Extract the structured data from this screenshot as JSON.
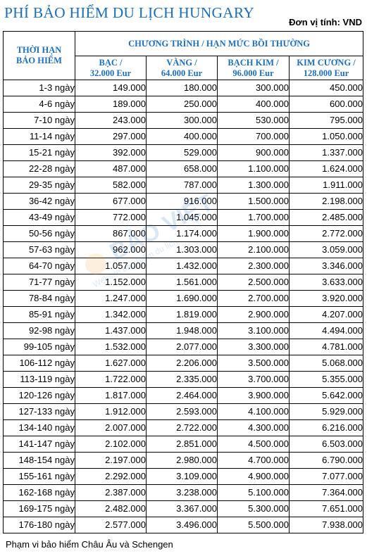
{
  "title": "PHÍ BẢO HIỂM DU LỊCH HUNGARY",
  "unit_label": "Đơn vị tính: VND",
  "table": {
    "term_header": [
      "THỜI HẠN",
      "BẢO HIỂM"
    ],
    "group_header": "CHƯƠNG TRÌNH / HẠN MỨC BỒI THƯỜNG",
    "tiers": [
      {
        "name": "BẠC /",
        "limit": "32.000 Eur"
      },
      {
        "name": "VÀNG /",
        "limit": "64.000 Eur"
      },
      {
        "name": "BẠCH KIM /",
        "limit": "96.000 Eur"
      },
      {
        "name": "KIM CƯƠNG /",
        "limit": "128.000 Eur"
      }
    ],
    "rows": [
      {
        "term": "1-3 ngày",
        "values": [
          "149.000",
          "180.000",
          "300.000",
          "450.000"
        ]
      },
      {
        "term": "4-6 ngày",
        "values": [
          "189.000",
          "250.000",
          "400.000",
          "600.000"
        ]
      },
      {
        "term": "7-10 ngày",
        "values": [
          "243.000",
          "300.000",
          "530.000",
          "795.000"
        ]
      },
      {
        "term": "11-14 ngày",
        "values": [
          "297.000",
          "400.000",
          "700.000",
          "1.050.000"
        ]
      },
      {
        "term": "15-21 ngày",
        "values": [
          "392.000",
          "529.000",
          "900.000",
          "1.337.000"
        ]
      },
      {
        "term": "22-28 ngày",
        "values": [
          "487.000",
          "658.000",
          "1.100.000",
          "1.624.000"
        ]
      },
      {
        "term": "29-35 ngày",
        "values": [
          "582.000",
          "787.000",
          "1.300.000",
          "1.911.000"
        ]
      },
      {
        "term": "36-42 ngày",
        "values": [
          "677.000",
          "916.000",
          "1.500.000",
          "2.198.000"
        ]
      },
      {
        "term": "43-49 ngày",
        "values": [
          "772.000",
          "1.045.000",
          "1.700.000",
          "2.485.000"
        ]
      },
      {
        "term": "50-56 ngày",
        "values": [
          "867.000",
          "1.174.000",
          "1.900.000",
          "2.772.000"
        ]
      },
      {
        "term": "57-63 ngày",
        "values": [
          "962.000",
          "1.303.000",
          "2.100.000",
          "3.059.000"
        ]
      },
      {
        "term": "64-70 ngày",
        "values": [
          "1.057.000",
          "1.432.000",
          "2.300.000",
          "3.346.000"
        ]
      },
      {
        "term": "71-77 ngày",
        "values": [
          "1.152.000",
          "1.561.000",
          "2.500.000",
          "3.633.000"
        ]
      },
      {
        "term": "78-84 ngày",
        "values": [
          "1.247.000",
          "1.690.000",
          "2.700.000",
          "3.920.000"
        ]
      },
      {
        "term": "85-91 ngày",
        "values": [
          "1.342.000",
          "1.819.000",
          "2.900.000",
          "4.207.000"
        ]
      },
      {
        "term": "92-98 ngày",
        "values": [
          "1.437.000",
          "1.948.000",
          "3.100.000",
          "4.494.000"
        ]
      },
      {
        "term": "99-105 ngày",
        "values": [
          "1.532.000",
          "2.077.000",
          "3.300.000",
          "4.781.000"
        ]
      },
      {
        "term": "106-112 ngày",
        "values": [
          "1.627.000",
          "2.206.000",
          "3.500.000",
          "5.068.000"
        ]
      },
      {
        "term": "113-119 ngày",
        "values": [
          "1.722.000",
          "2.335.000",
          "3.700.000",
          "5.355.000"
        ]
      },
      {
        "term": "120-126 ngày",
        "values": [
          "1.817.000",
          "2.464.000",
          "3.900.000",
          "5.642.000"
        ]
      },
      {
        "term": "127-133 ngày",
        "values": [
          "1.912.000",
          "2.593.000",
          "4.100.000",
          "5.929.000"
        ]
      },
      {
        "term": "134-140 ngày",
        "values": [
          "2.007.000",
          "2.722.000",
          "4.300.000",
          "6.216.000"
        ]
      },
      {
        "term": "141-147 ngày",
        "values": [
          "2.102.000",
          "2.851.000",
          "4.500.000",
          "6.503.000"
        ]
      },
      {
        "term": "148-154 ngày",
        "values": [
          "2.197.000",
          "2.980.000",
          "4.700.000",
          "6.790.000"
        ]
      },
      {
        "term": "155-161 ngày",
        "values": [
          "2.292.000",
          "3.109.000",
          "4.900.000",
          "7.077.000"
        ]
      },
      {
        "term": "162-168 ngày",
        "values": [
          "2.387.000",
          "3.238.000",
          "5.100.000",
          "7.364.000"
        ]
      },
      {
        "term": "169-175 ngày",
        "values": [
          "2.482.000",
          "3.367.000",
          "5.300.000",
          "7.651.000"
        ]
      },
      {
        "term": "176-180 ngày",
        "values": [
          "2.577.000",
          "3.496.000",
          "5.500.000",
          "7.938.000"
        ]
      }
    ]
  },
  "footnote": "Phạm vi bảo hiểm Châu Âu và Schengen",
  "watermark": {
    "brand": "BẢO VIỆT",
    "sub": "Website bảo hiểm du lịch"
  },
  "colors": {
    "accent": "#1f6fb8",
    "watermark_orange": "#f2a33a"
  }
}
